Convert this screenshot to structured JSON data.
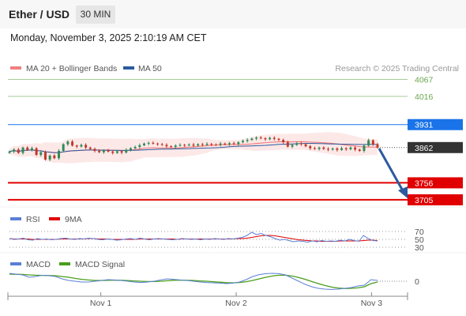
{
  "header": {
    "title": "Ether / USD",
    "timeframe": "30 MIN"
  },
  "datetime": "Monday, November 3, 2025 2:10:19 AM CET",
  "credit": "Research © 2025 Trading Central",
  "colors": {
    "ma20": "#f08080",
    "ma50": "#2b5a9e",
    "resistance": "#6aa84f",
    "support": "#e00000",
    "pivot": "#1a73e8",
    "last": "#333333",
    "up": "#2e8b57",
    "down": "#c0392b",
    "rsi": "#5b7fd6",
    "rsi_ma": "#e00000",
    "macd": "#5b7fd6",
    "macd_signal": "#4a9e1a"
  },
  "chart_data": [
    {
      "type": "candlestick",
      "legend": [
        {
          "name": "MA 20 + Bollinger Bands",
          "color": "#f08080"
        },
        {
          "name": "MA 50",
          "color": "#2b5a9e"
        }
      ],
      "x_ticks": [
        "Nov 1",
        "Nov 2",
        "Nov 3"
      ],
      "levels": [
        {
          "label": "4067",
          "value": 4067,
          "kind": "resistance"
        },
        {
          "label": "4016",
          "value": 4016,
          "kind": "resistance"
        },
        {
          "label": "3931",
          "value": 3931,
          "kind": "pivot"
        },
        {
          "label": "3862",
          "value": 3862,
          "kind": "last"
        },
        {
          "label": "3756",
          "value": 3756,
          "kind": "support"
        },
        {
          "label": "3705",
          "value": 3705,
          "kind": "support"
        }
      ],
      "close": [
        3850,
        3856,
        3846,
        3862,
        3855,
        3860,
        3840,
        3848,
        3826,
        3838,
        3830,
        3852,
        3872,
        3880,
        3868,
        3865,
        3870,
        3862,
        3858,
        3852,
        3848,
        3854,
        3850,
        3846,
        3851,
        3847,
        3855,
        3860,
        3864,
        3869,
        3874,
        3876,
        3874,
        3872,
        3870,
        3866,
        3864,
        3868,
        3870,
        3869,
        3871,
        3868,
        3872,
        3870,
        3873,
        3871,
        3870,
        3874,
        3872,
        3875,
        3873,
        3878,
        3882,
        3885,
        3889,
        3892,
        3890,
        3887,
        3891,
        3888,
        3885,
        3878,
        3865,
        3870,
        3875,
        3872,
        3866,
        3860,
        3858,
        3862,
        3858,
        3856,
        3859,
        3855,
        3860,
        3857,
        3862,
        3856,
        3852,
        3868,
        3884,
        3872,
        3862
      ],
      "ylim": [
        3700,
        4080
      ]
    },
    {
      "type": "line",
      "legend": [
        {
          "name": "RSI",
          "color": "#5b7fd6"
        },
        {
          "name": "9MA",
          "color": "#e00000"
        }
      ],
      "levels": [
        "70",
        "50",
        "30"
      ],
      "rsi": [
        52,
        50,
        51,
        53,
        49,
        48,
        52,
        50,
        51,
        49,
        50,
        52,
        53,
        51,
        50,
        52,
        51,
        53,
        52,
        50,
        49,
        51,
        50,
        48,
        49,
        51,
        52,
        50,
        53,
        51,
        49,
        51,
        52,
        51,
        50,
        49,
        50,
        52,
        51,
        50,
        51,
        49,
        51,
        50,
        52,
        51,
        50,
        52,
        51,
        53,
        55,
        60,
        68,
        62,
        65,
        60,
        57,
        52,
        48,
        50,
        47,
        44,
        46,
        45,
        43,
        46,
        44,
        47,
        45,
        46,
        45,
        48,
        46,
        50,
        47,
        45,
        60,
        52,
        47,
        46
      ],
      "ma9": [
        52,
        51,
        51,
        51,
        51,
        50,
        50,
        50,
        50,
        50,
        50,
        51,
        51,
        51,
        51,
        51,
        51,
        52,
        52,
        51,
        51,
        51,
        50,
        50,
        50,
        50,
        50,
        50,
        51,
        51,
        51,
        51,
        51,
        51,
        51,
        51,
        50,
        51,
        51,
        51,
        51,
        51,
        51,
        51,
        51,
        51,
        51,
        51,
        51,
        52,
        52,
        53,
        55,
        57,
        59,
        60,
        60,
        59,
        57,
        55,
        53,
        51,
        49,
        48,
        47,
        46,
        46,
        45,
        45,
        45,
        45,
        46,
        46,
        46,
        46,
        46,
        47,
        48,
        48,
        47
      ],
      "ylim": [
        20,
        80
      ]
    },
    {
      "type": "line",
      "legend": [
        {
          "name": "MACD",
          "color": "#5b7fd6"
        },
        {
          "name": "MACD Signal",
          "color": "#4a9e1a"
        }
      ],
      "levels": [
        "0"
      ],
      "macd": [
        0.5,
        0.45,
        0.4,
        0.25,
        0.3,
        0.38,
        0.35,
        0.3,
        0.15,
        0.05,
        0.0,
        -0.05,
        -0.05,
        0.0,
        0.05,
        0.1,
        0.08,
        0.05,
        0.0,
        -0.05,
        -0.08,
        -0.05,
        0.0,
        0.08,
        0.15,
        0.12,
        0.08,
        0.05,
        0.0,
        -0.05,
        -0.08,
        -0.1,
        -0.12,
        -0.15,
        -0.12,
        -0.05,
        0.1,
        0.3,
        0.42,
        0.48,
        0.5,
        0.48,
        0.4,
        0.2,
        0.0,
        -0.2,
        -0.35,
        -0.45,
        -0.5,
        -0.52,
        -0.5,
        -0.45,
        -0.4,
        -0.3,
        -0.25,
        0.1,
        0.05
      ],
      "signal": [
        0.45,
        0.44,
        0.43,
        0.4,
        0.38,
        0.37,
        0.36,
        0.35,
        0.3,
        0.25,
        0.18,
        0.12,
        0.08,
        0.05,
        0.05,
        0.06,
        0.07,
        0.06,
        0.04,
        0.02,
        0.0,
        -0.02,
        -0.02,
        0.0,
        0.03,
        0.06,
        0.07,
        0.06,
        0.05,
        0.02,
        0.0,
        -0.03,
        -0.06,
        -0.09,
        -0.1,
        -0.08,
        -0.03,
        0.05,
        0.15,
        0.25,
        0.33,
        0.38,
        0.38,
        0.33,
        0.24,
        0.12,
        -0.02,
        -0.15,
        -0.27,
        -0.37,
        -0.43,
        -0.46,
        -0.45,
        -0.42,
        -0.35,
        -0.15,
        -0.05
      ],
      "ylim": [
        -0.8,
        0.8
      ]
    }
  ]
}
